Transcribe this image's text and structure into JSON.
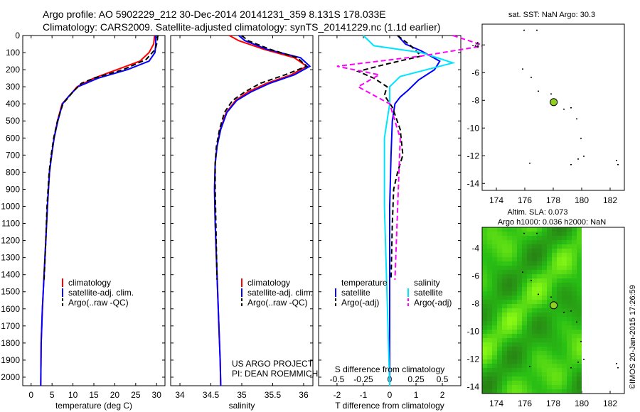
{
  "header": {
    "line1": "Argo profile: AO 5902229_212 30-Dec-2014 20141231_359 8.131S 178.033E",
    "line2": "Climatology: CARS2009. Satellite-adjusted climatology: synTS_20141229.nc (1.1d earlier)"
  },
  "credit": "©IMOS 20-Jan-2015 17:26:59",
  "colors": {
    "climatology": "#ff0000",
    "satellite": "#0000ff",
    "argo": "#000000",
    "sal_sat": "#00e5ff",
    "sal_argo": "#ff00ff",
    "marker": "#90d020"
  },
  "legend": {
    "climatology": "climatology",
    "satellite_adj": "satellite-adj. clim.",
    "argo_raw": "Argo(..raw -QC)",
    "temperature_head": "temperature",
    "salinity_head": "salinity",
    "satellite": "satellite",
    "argo_adj": "Argo(-adj)"
  },
  "project": {
    "line1": "US ARGO PROJECT",
    "line2": "PI: DEAN ROEMMICH"
  },
  "map_top": {
    "title": "sat. SST: NaN Argo: 30.3"
  },
  "map_bottom": {
    "title1": "Altim. SLA: 0.073",
    "title2": "Argo h1000: 0.036 h2000: NaN"
  },
  "chart_data": [
    {
      "type": "line",
      "name": "temperature-panel",
      "xlabel": "temperature (deg C)",
      "ylabel": "depth",
      "xlim": [
        -2,
        32
      ],
      "ylim": [
        2050,
        0
      ],
      "xticks": [
        "0",
        "5",
        "10",
        "15",
        "20",
        "25",
        "30"
      ],
      "xtick_values": [
        0,
        5,
        10,
        15,
        20,
        25,
        30
      ],
      "yticks": [
        0,
        100,
        200,
        300,
        400,
        500,
        600,
        700,
        800,
        900,
        1000,
        1100,
        1200,
        1300,
        1400,
        1500,
        1600,
        1700,
        1800,
        1900,
        2000
      ],
      "series": [
        {
          "name": "climatology",
          "color": "#ff0000",
          "x": [
            29.5,
            29.3,
            28.2,
            26,
            20.5,
            15,
            11,
            9.2,
            7.4,
            6.3,
            5.5,
            4.9,
            4.4,
            3.9,
            3.5,
            3.1,
            2.7,
            2.4,
            2.3
          ],
          "depth": [
            0,
            50,
            100,
            150,
            200,
            250,
            300,
            350,
            400,
            500,
            600,
            700,
            800,
            1000,
            1200,
            1400,
            1600,
            1800,
            2050
          ]
        },
        {
          "name": "satellite-adj",
          "color": "#0000ff",
          "x": [
            29.7,
            29.8,
            29.6,
            28.2,
            23,
            16,
            11.2,
            9.2,
            7.5,
            6.4,
            5.5,
            4.9,
            4.4,
            3.9,
            3.5,
            3.1,
            2.7,
            2.4,
            2.3
          ],
          "depth": [
            0,
            50,
            100,
            150,
            200,
            250,
            300,
            350,
            400,
            500,
            600,
            700,
            800,
            1000,
            1200,
            1400,
            1600,
            1800,
            2050
          ]
        },
        {
          "name": "argo-raw",
          "color": "#000000",
          "dash": true,
          "x": [
            30.3,
            30.1,
            29.7,
            27.5,
            22,
            15,
            12,
            10,
            7.6,
            6.3,
            5.4,
            4.8,
            4.3,
            3.8,
            3.5,
            3.1
          ],
          "depth": [
            0,
            40,
            80,
            140,
            200,
            250,
            280,
            330,
            400,
            500,
            600,
            700,
            800,
            1000,
            1200,
            1430
          ]
        }
      ]
    },
    {
      "type": "line",
      "name": "salinity-panel",
      "xlabel": "salinity",
      "xlim": [
        33.85,
        36.15
      ],
      "ylim": [
        2050,
        0
      ],
      "xticks": [
        "34",
        "34.5",
        "35",
        "35.5",
        "36"
      ],
      "xtick_values": [
        34,
        34.5,
        35,
        35.5,
        36
      ],
      "series": [
        {
          "name": "climatology",
          "color": "#ff0000",
          "x": [
            34.8,
            34.95,
            35.35,
            35.85,
            36.05,
            35.8,
            35.4,
            35.1,
            34.9,
            34.75,
            34.65,
            34.6,
            34.57,
            34.56,
            34.57,
            34.6,
            34.63,
            34.65,
            34.66
          ],
          "depth": [
            0,
            30,
            80,
            130,
            180,
            230,
            280,
            330,
            380,
            450,
            550,
            650,
            750,
            900,
            1100,
            1400,
            1700,
            1900,
            2050
          ]
        },
        {
          "name": "satellite-adj",
          "color": "#0000ff",
          "x": [
            34.95,
            35.05,
            35.4,
            35.95,
            36.1,
            35.85,
            35.45,
            35.15,
            34.92,
            34.76,
            34.66,
            34.6,
            34.57,
            34.56,
            34.57,
            34.6,
            34.63,
            34.65,
            34.66
          ],
          "depth": [
            0,
            30,
            80,
            130,
            180,
            230,
            280,
            330,
            380,
            450,
            550,
            650,
            750,
            900,
            1100,
            1400,
            1700,
            1900,
            2050
          ]
        },
        {
          "name": "argo-raw",
          "color": "#000000",
          "dash": true,
          "x": [
            35.0,
            35.1,
            35.45,
            35.9,
            36.05,
            35.7,
            35.3,
            35.05,
            34.85,
            34.72,
            34.64,
            34.59,
            34.57,
            34.57,
            34.6
          ],
          "depth": [
            0,
            30,
            80,
            130,
            180,
            230,
            280,
            330,
            380,
            450,
            550,
            650,
            750,
            900,
            1430
          ]
        }
      ]
    },
    {
      "type": "line",
      "name": "difference-panel",
      "xlabel": "T difference from climatology",
      "xlabel2": "S difference from climatology",
      "xlim": [
        -2.7,
        2.7
      ],
      "ylim": [
        2050,
        0
      ],
      "xticks": [
        "-2",
        "-1",
        "0",
        "1",
        "2"
      ],
      "xtick_values": [
        -2,
        -1,
        0,
        1,
        2
      ],
      "s_ticks": [
        "-0.5",
        "-0.25",
        "0",
        "0.25",
        "0.5"
      ],
      "s_tick_values": [
        -0.5,
        -0.25,
        0,
        0.25,
        0.5
      ],
      "series": [
        {
          "name": "temperature-satellite",
          "color": "#0000ff",
          "x": [
            0.3,
            0.6,
            1.2,
            1.9,
            1.7,
            1.1,
            0.7,
            0.4,
            0.2,
            0.1,
            0.05,
            0,
            0,
            0
          ],
          "depth": [
            0,
            50,
            90,
            150,
            200,
            260,
            320,
            360,
            400,
            500,
            700,
            1000,
            1500,
            2050
          ]
        },
        {
          "name": "temperature-argo",
          "color": "#000000",
          "dash": true,
          "x": [
            0.3,
            0.8,
            1.2,
            -0.2,
            -1.2,
            -0.6,
            -0.1,
            -0.2,
            0.1,
            0.4,
            0.5,
            0.3,
            0.15,
            0.1,
            0.05
          ],
          "depth": [
            0,
            60,
            120,
            170,
            210,
            250,
            300,
            350,
            420,
            550,
            700,
            800,
            900,
            1100,
            1430
          ]
        },
        {
          "name": "salinity-satellite",
          "color": "#00e5ff",
          "x": [
            -0.25,
            -0.15,
            0.3,
            0.6,
            0.1,
            0,
            0,
            -0.05,
            -0.05,
            0
          ],
          "depth": [
            0,
            60,
            100,
            160,
            240,
            300,
            400,
            600,
            1000,
            2050
          ]
        },
        {
          "name": "salinity-argo",
          "color": "#ff00ff",
          "dash": true,
          "x": [
            0.6,
            0.9,
            0.3,
            -0.5,
            -0.1,
            -0.3,
            0,
            0.1,
            0.05
          ],
          "depth": [
            0,
            60,
            120,
            180,
            230,
            300,
            400,
            600,
            1430
          ]
        }
      ]
    }
  ],
  "map_top_data": {
    "type": "scatter",
    "xlim": [
      173,
      183
    ],
    "ylim": [
      -14.5,
      -2.5
    ],
    "xticks": [
      "174",
      "176",
      "178",
      "180",
      "182"
    ],
    "xtick_values": [
      174,
      176,
      178,
      180,
      182
    ],
    "yticks": [
      "-4",
      "-6",
      "-8",
      "-10",
      "-12",
      "-14"
    ],
    "ytick_values": [
      -4,
      -6,
      -8,
      -10,
      -12,
      -14
    ],
    "islands": [
      [
        175.9,
        -2.9
      ],
      [
        176.8,
        -2.9
      ],
      [
        175.8,
        -5.7
      ],
      [
        176.4,
        -6.3
      ],
      [
        176.9,
        -7.3
      ],
      [
        177.8,
        -7.5
      ],
      [
        178.7,
        -8.6
      ],
      [
        179.2,
        -8.5
      ],
      [
        179.6,
        -9.3
      ],
      [
        179.9,
        -10.7
      ],
      [
        180.1,
        -12.0
      ],
      [
        179.7,
        -12.2
      ],
      [
        179.2,
        -12.6
      ],
      [
        176.3,
        -12.5
      ],
      [
        182.4,
        -12.3
      ],
      [
        182.5,
        -12.6
      ]
    ],
    "argo_position": [
      178.033,
      -8.131
    ]
  },
  "map_bottom_data": {
    "type": "heatmap",
    "xlim": [
      173,
      183
    ],
    "ylim": [
      -14.5,
      -2.5
    ],
    "data_extent_lon": [
      173,
      180
    ],
    "xticks": [
      "174",
      "176",
      "178",
      "180",
      "182"
    ],
    "xtick_values": [
      174,
      176,
      178,
      180,
      182
    ],
    "yticks": [
      "-4",
      "-6",
      "-8",
      "-10",
      "-12",
      "-14"
    ],
    "ytick_values": [
      -4,
      -6,
      -8,
      -10,
      -12,
      -14
    ],
    "argo_position": [
      178.033,
      -8.131
    ]
  }
}
